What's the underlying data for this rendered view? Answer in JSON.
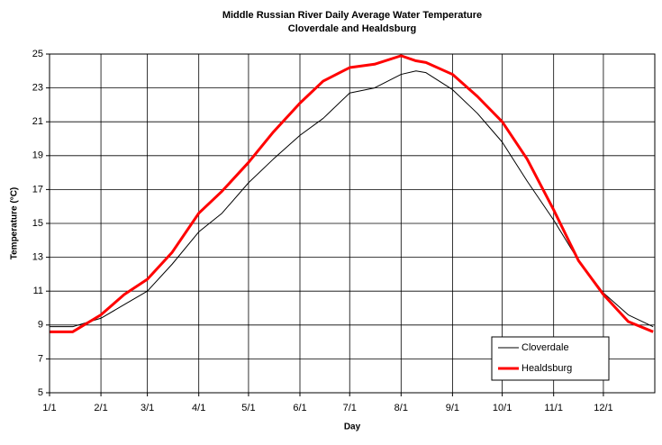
{
  "chart_data": {
    "type": "line",
    "title": "Middle Russian River Daily Average Water Temperature",
    "subtitle": "Cloverdale and Healdsburg",
    "x_label": "Day",
    "y_label": "Temperature (°C)",
    "x": [
      1,
      15,
      32,
      46,
      60,
      75,
      91,
      105,
      121,
      136,
      152,
      166,
      182,
      197,
      213,
      222,
      228,
      244,
      259,
      274,
      289,
      305,
      320,
      335,
      350,
      365
    ],
    "series": [
      {
        "name": "Cloverdale",
        "color": "#000000",
        "width": 1,
        "values": [
          8.9,
          8.9,
          9.4,
          10.2,
          11.0,
          12.6,
          14.5,
          15.6,
          17.4,
          18.8,
          20.2,
          21.2,
          22.7,
          23.0,
          23.8,
          24.0,
          23.9,
          22.9,
          21.5,
          19.8,
          17.5,
          15.2,
          12.8,
          10.9,
          9.6,
          8.9
        ]
      },
      {
        "name": "Healdsburg",
        "color": "#ff0000",
        "width": 3,
        "values": [
          8.6,
          8.6,
          9.6,
          10.8,
          11.7,
          13.3,
          15.6,
          16.9,
          18.6,
          20.4,
          22.1,
          23.4,
          24.2,
          24.4,
          24.9,
          24.6,
          24.5,
          23.8,
          22.5,
          21.0,
          18.8,
          15.8,
          12.8,
          10.8,
          9.2,
          8.6
        ]
      }
    ],
    "xlim": [
      1,
      366
    ],
    "xticks": [
      {
        "value": 1,
        "label": "1/1"
      },
      {
        "value": 32,
        "label": "2/1"
      },
      {
        "value": 60,
        "label": "3/1"
      },
      {
        "value": 91,
        "label": "4/1"
      },
      {
        "value": 121,
        "label": "5/1"
      },
      {
        "value": 152,
        "label": "6/1"
      },
      {
        "value": 182,
        "label": "7/1"
      },
      {
        "value": 213,
        "label": "8/1"
      },
      {
        "value": 244,
        "label": "9/1"
      },
      {
        "value": 274,
        "label": "10/1"
      },
      {
        "value": 305,
        "label": "11/1"
      },
      {
        "value": 335,
        "label": "12/1"
      }
    ],
    "ylim": [
      5,
      25
    ],
    "yticks": [
      5,
      7,
      9,
      11,
      13,
      15,
      17,
      19,
      21,
      23,
      25
    ],
    "grid": true,
    "legend": "lower right"
  }
}
